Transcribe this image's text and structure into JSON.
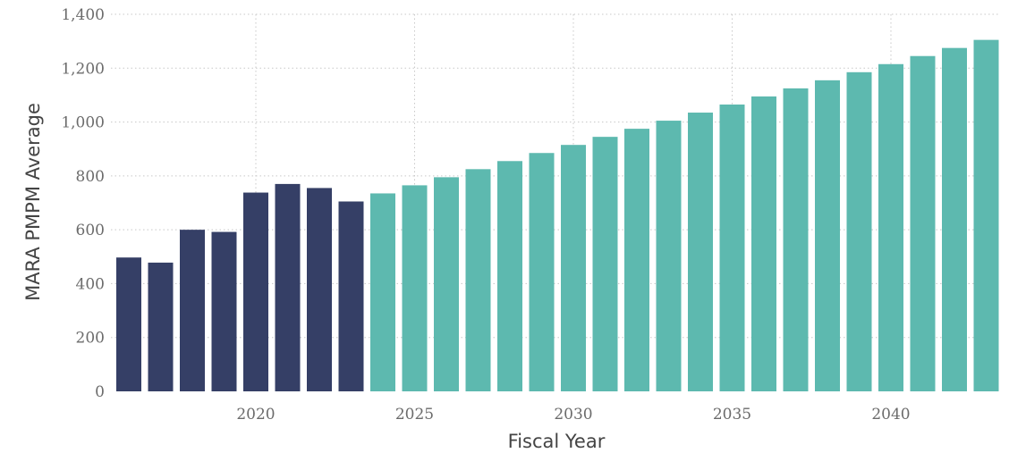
{
  "chart_data": {
    "type": "bar",
    "xlabel": "Fiscal Year",
    "ylabel": "MARA PMPM Average",
    "ylim": [
      0,
      1400
    ],
    "yticks": [
      0,
      200,
      400,
      600,
      800,
      1000,
      1200,
      1400
    ],
    "ytick_labels": [
      "0",
      "200",
      "400",
      "600",
      "800",
      "1,000",
      "1,200",
      "1,400"
    ],
    "xticks": [
      2020,
      2025,
      2030,
      2035,
      2040
    ],
    "xtick_labels": [
      "2020",
      "2025",
      "2030",
      "2035",
      "2040"
    ],
    "grid": true,
    "colors": {
      "historical": "#353f66",
      "projected": "#5db9af"
    },
    "x": [
      2016,
      2017,
      2018,
      2019,
      2020,
      2021,
      2022,
      2023,
      2024,
      2025,
      2026,
      2027,
      2028,
      2029,
      2030,
      2031,
      2032,
      2033,
      2034,
      2035,
      2036,
      2037,
      2038,
      2039,
      2040,
      2041,
      2042,
      2043
    ],
    "values": [
      497,
      478,
      600,
      592,
      738,
      770,
      755,
      705,
      735,
      765,
      795,
      825,
      855,
      885,
      915,
      945,
      975,
      1005,
      1035,
      1065,
      1095,
      1125,
      1155,
      1185,
      1215,
      1245,
      1275,
      1305
    ],
    "segments": [
      "historical",
      "historical",
      "historical",
      "historical",
      "historical",
      "historical",
      "historical",
      "historical",
      "projected",
      "projected",
      "projected",
      "projected",
      "projected",
      "projected",
      "projected",
      "projected",
      "projected",
      "projected",
      "projected",
      "projected",
      "projected",
      "projected",
      "projected",
      "projected",
      "projected",
      "projected",
      "projected",
      "projected"
    ]
  }
}
